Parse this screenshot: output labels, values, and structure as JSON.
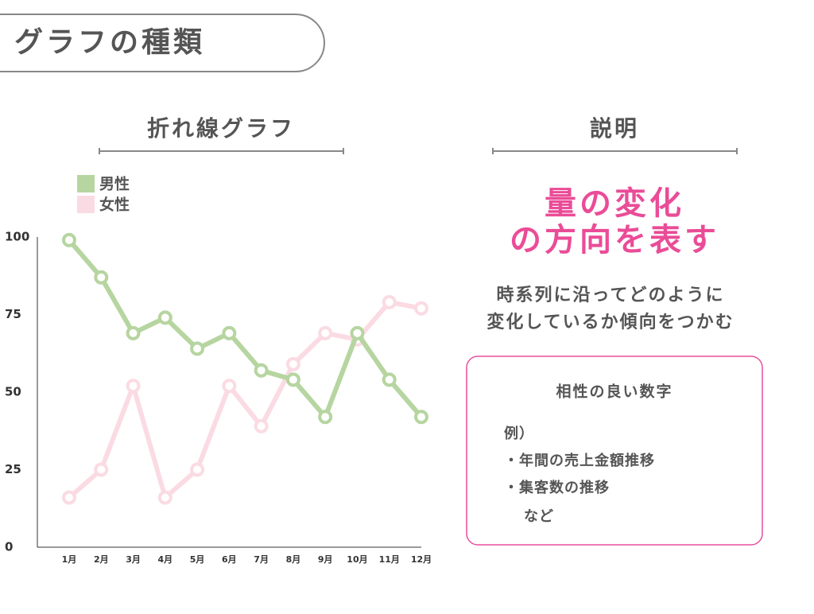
{
  "header": {
    "title": "グラフの種類"
  },
  "chart_data": {
    "type": "line",
    "title": "折れ線グラフ",
    "categories": [
      "1月",
      "2月",
      "3月",
      "4月",
      "5月",
      "6月",
      "7月",
      "8月",
      "9月",
      "10月",
      "11月",
      "12月"
    ],
    "series": [
      {
        "name": "男性",
        "color": "#b6d5a0",
        "values": [
          99,
          87,
          69,
          74,
          64,
          69,
          57,
          54,
          42,
          69,
          54,
          42
        ]
      },
      {
        "name": "女性",
        "color": "#fbdbe3",
        "values": [
          16,
          25,
          52,
          16,
          25,
          52,
          39,
          59,
          69,
          67,
          79,
          77
        ]
      }
    ],
    "ylim": [
      0,
      100
    ],
    "yticks": [
      0,
      25,
      50,
      75,
      100
    ],
    "grid": false,
    "legend": "top-left"
  },
  "explanation": {
    "heading": "説明",
    "headline": [
      "量の変化",
      "の方向を表す"
    ],
    "description": [
      "時系列に沿ってどのように",
      "変化しているか傾向をつかむ"
    ],
    "box": {
      "title": "相性の良い数字",
      "lines": [
        "例）",
        "・年間の売上金額推移",
        "・集客数の推移",
        "　など"
      ]
    }
  }
}
